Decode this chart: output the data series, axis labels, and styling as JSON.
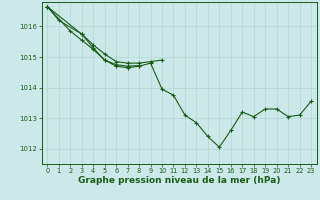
{
  "background_color": "#cde8e8",
  "grid_color": "#b8d8d8",
  "line_color": "#1a5c1a",
  "xlabel": "Graphe pression niveau de la mer (hPa)",
  "xlabel_fontsize": 6.5,
  "xlim": [
    -0.5,
    23.5
  ],
  "ylim": [
    1011.5,
    1016.8
  ],
  "yticks": [
    1012,
    1013,
    1014,
    1015,
    1016
  ],
  "xticks": [
    0,
    1,
    2,
    3,
    4,
    5,
    6,
    7,
    8,
    9,
    10,
    11,
    12,
    13,
    14,
    15,
    16,
    17,
    18,
    19,
    20,
    21,
    22,
    23
  ],
  "series1": {
    "x": [
      0,
      1,
      3,
      4,
      5,
      6,
      7,
      8,
      9,
      10
    ],
    "y": [
      1016.65,
      1016.2,
      1015.75,
      1015.4,
      1015.1,
      1014.85,
      1014.8,
      1014.8,
      1014.85,
      1014.9
    ]
  },
  "series2": {
    "x": [
      0,
      2,
      3,
      4,
      5,
      6,
      7,
      8
    ],
    "y": [
      1016.65,
      1015.85,
      1015.55,
      1015.25,
      1014.9,
      1014.75,
      1014.7,
      1014.72
    ]
  },
  "series3": {
    "x": [
      0,
      3,
      4,
      5,
      6,
      7,
      8,
      9,
      10,
      11,
      12,
      13,
      14,
      15,
      16,
      17,
      18,
      19,
      20,
      21,
      22,
      23
    ],
    "y": [
      1016.65,
      1015.75,
      1015.3,
      1014.9,
      1014.7,
      1014.65,
      1014.7,
      1014.8,
      1013.95,
      1013.75,
      1013.1,
      1012.85,
      1012.4,
      1012.05,
      1012.6,
      1013.2,
      1013.05,
      1013.3,
      1013.3,
      1013.05,
      1013.1,
      1013.55
    ]
  }
}
